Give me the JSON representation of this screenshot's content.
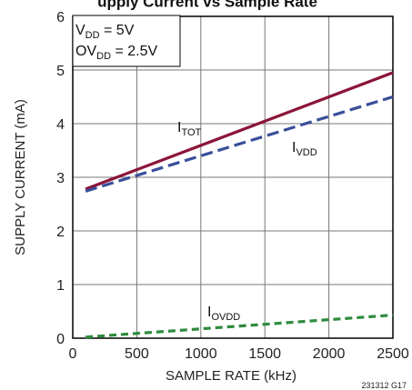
{
  "title_fragment": "upply Current vs Sample Rate",
  "figure_id": "231312 G17",
  "conditions": {
    "vdd": {
      "main": "V",
      "sub": "DD",
      "tail": " = 5V"
    },
    "ovdd": {
      "main": "OV",
      "sub": "DD",
      "tail": " = 2.5V"
    }
  },
  "chart_data": {
    "type": "line",
    "xlabel": "SAMPLE RATE (kHz)",
    "ylabel": "SUPPLY CURRENT (mA)",
    "xlim": [
      0,
      2500
    ],
    "ylim": [
      0,
      6
    ],
    "xticks": [
      "0",
      "500",
      "1000",
      "1500",
      "2000",
      "2500"
    ],
    "yticks": [
      "0",
      "1",
      "2",
      "3",
      "4",
      "5",
      "6"
    ],
    "grid": true,
    "series": [
      {
        "name": "ITOT",
        "main": "I",
        "sub": "TOT",
        "color": "#8b1538",
        "dash": "solid",
        "x": [
          100,
          2500
        ],
        "y": [
          2.78,
          4.95
        ]
      },
      {
        "name": "IVDD",
        "main": "I",
        "sub": "VDD",
        "color": "#3a4f9a",
        "dash": "long",
        "x": [
          100,
          2500
        ],
        "y": [
          2.74,
          4.5
        ]
      },
      {
        "name": "IOVDD",
        "main": "I",
        "sub": "OVDD",
        "color": "#2e8b3e",
        "dash": "short",
        "x": [
          100,
          2500
        ],
        "y": [
          0.02,
          0.43
        ]
      }
    ]
  }
}
